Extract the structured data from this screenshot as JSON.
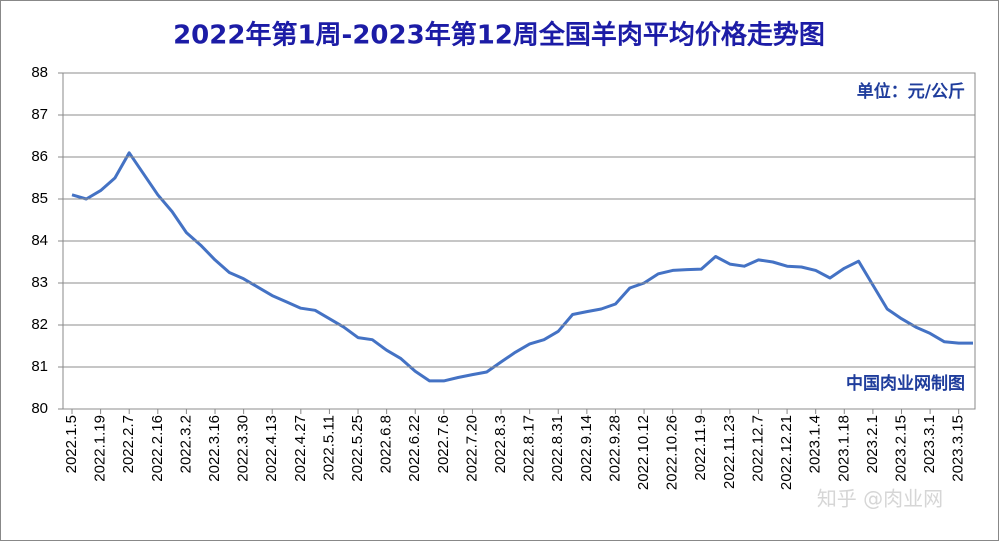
{
  "chart_data": {
    "type": "line",
    "title": "2022年第1周-2023年第12周全国羊肉平均价格走势图",
    "unit_note": "单位：元/公斤",
    "source_note": "中国肉业网制图",
    "watermark": "知乎 @肉业网",
    "categories": [
      "2022.1.5",
      null,
      "2022.1.19",
      null,
      "2022.2.7",
      null,
      "2022.2.16",
      null,
      "2022.3.2",
      null,
      "2022.3.16",
      null,
      "2022.3.30",
      null,
      "2022.4.13",
      null,
      "2022.4.27",
      null,
      "2022.5.11",
      null,
      "2022.5.25",
      null,
      "2022.6.8",
      null,
      "2022.6.22",
      null,
      "2022.7.6",
      null,
      "2022.7.20",
      null,
      "2022.8.3",
      null,
      "2022.8.17",
      null,
      "2022.8.31",
      null,
      "2022.9.14",
      null,
      "2022.9.28",
      null,
      "2022.10.12",
      null,
      "2022.10.26",
      null,
      "2022.11.9",
      null,
      "2022.11.23",
      null,
      "2022.12.7",
      null,
      "2022.12.21",
      null,
      "2023.1.4",
      null,
      "2023.1.18",
      null,
      "2023.2.1",
      null,
      "2023.2.15",
      null,
      "2023.3.1",
      null,
      "2023.3.15",
      null
    ],
    "values": [
      85.1,
      85.0,
      85.2,
      85.5,
      86.1,
      85.6,
      85.1,
      84.7,
      84.2,
      83.9,
      83.55,
      83.25,
      83.1,
      82.9,
      82.7,
      82.55,
      82.4,
      82.35,
      82.15,
      81.95,
      81.7,
      81.65,
      81.4,
      81.2,
      80.9,
      80.67,
      80.67,
      80.75,
      80.82,
      80.88,
      81.12,
      81.35,
      81.55,
      81.65,
      81.85,
      82.25,
      82.32,
      82.38,
      82.5,
      82.88,
      83.0,
      83.22,
      83.3,
      83.32,
      83.33,
      83.63,
      83.45,
      83.4,
      83.55,
      83.5,
      83.4,
      83.38,
      83.3,
      83.12,
      83.35,
      83.52,
      82.95,
      82.38,
      82.15,
      81.95,
      81.8,
      81.6,
      81.57,
      81.57
    ],
    "color": "#4472c4",
    "ylim": [
      80,
      88
    ],
    "yticks": [
      80,
      81,
      82,
      83,
      84,
      85,
      86,
      87,
      88
    ],
    "grid": true
  }
}
